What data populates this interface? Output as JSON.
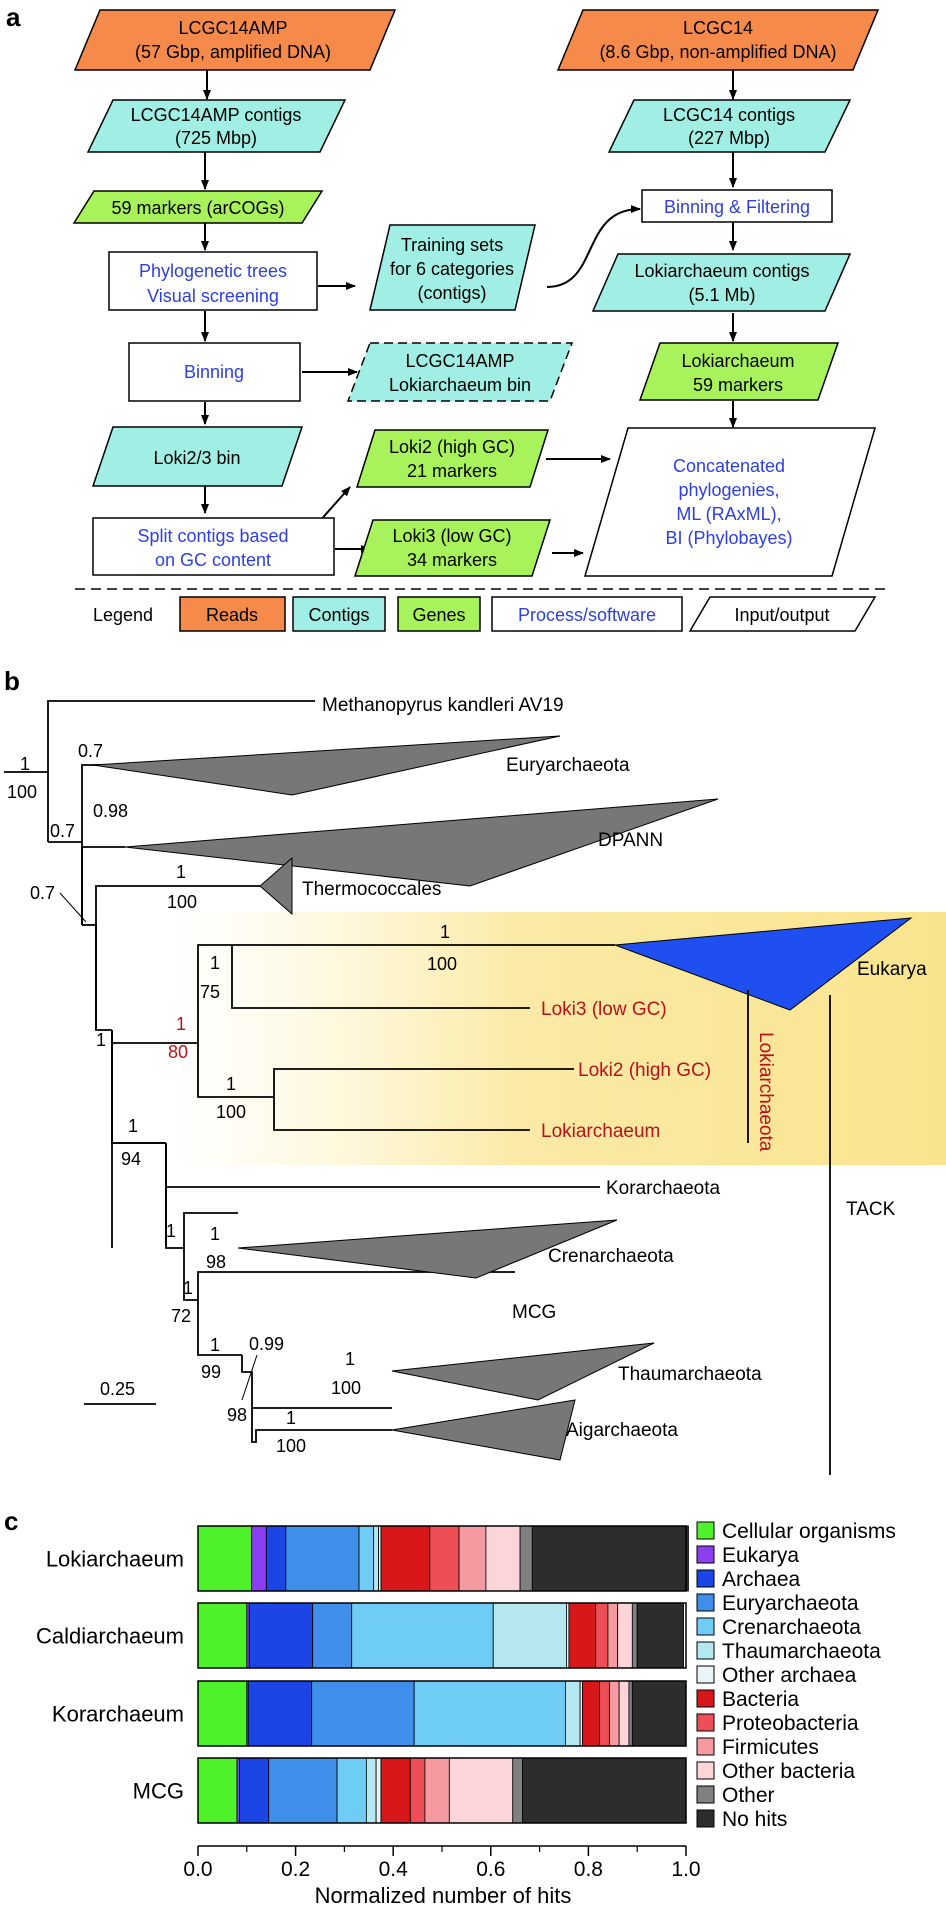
{
  "colors": {
    "reads": "#f58a4b",
    "contigs": "#a1efe4",
    "genes": "#a8f25c",
    "process_text": "#2d3fe0",
    "red_text": "#b8121b",
    "highlight": "#f9e48e",
    "gray_clade": "#777777",
    "eukarya_clade": "#1f4ff0"
  },
  "panel_a": {
    "label": "a",
    "flow": {
      "lcgc14amp_reads": [
        "LCGC14AMP",
        "(57 Gbp, amplified DNA)"
      ],
      "lcgc14_reads": [
        "LCGC14",
        "(8.6 Gbp, non-amplified DNA)"
      ],
      "lcgc14amp_contigs": [
        "LCGC14AMP contigs",
        "(725 Mbp)"
      ],
      "lcgc14_contigs": [
        "LCGC14 contigs",
        "(227 Mbp)"
      ],
      "markers_59": [
        "59 markers (arCOGs)"
      ],
      "binning_filtering": [
        "Binning & Filtering"
      ],
      "phylo_trees": [
        "Phylogenetic trees",
        "Visual screening"
      ],
      "training_sets": [
        "Training sets",
        "for 6 categories",
        "(contigs)"
      ],
      "loki_contigs": [
        "Lokiarchaeum contigs",
        "(5.1 Mb)"
      ],
      "binning": [
        "Binning"
      ],
      "amp_bin": [
        "LCGC14AMP",
        "Lokiarchaeum bin"
      ],
      "loki_markers": [
        "Lokiarchaeum",
        "59 markers"
      ],
      "loki23_bin": [
        "Loki2/3 bin"
      ],
      "loki2_markers": [
        "Loki2 (high GC)",
        "21 markers"
      ],
      "loki3_markers": [
        "Loki3 (low GC)",
        "34 markers"
      ],
      "split_contigs": [
        "Split contigs based",
        "on GC content"
      ],
      "concat": [
        "Concatenated",
        "phylogenies,",
        "ML (RAxML),",
        "BI (Phylobayes)"
      ]
    },
    "legend": {
      "title": "Legend",
      "reads": "Reads",
      "contigs": "Contigs",
      "genes": "Genes",
      "process": "Process/software",
      "io": "Input/output"
    }
  },
  "panel_b": {
    "label": "b",
    "taxa": {
      "methanopyrus": "Methanopyrus kandleri AV19",
      "euryarchaeota": "Euryarchaeota",
      "dpann": "DPANN",
      "thermococcales": "Thermococcales",
      "eukarya": "Eukarya",
      "loki3": "Loki3 (low GC)",
      "loki2": "Loki2 (high GC)",
      "lokiarchaeum": "Lokiarchaeum",
      "korarchaeota": "Korarchaeota",
      "crenarchaeota": "Crenarchaeota",
      "mcg": "MCG",
      "thaumarchaeota": "Thaumarchaeota",
      "aigarchaeota": "Aigarchaeota"
    },
    "group_labels": {
      "lokiarchaeota": "Lokiarchaeota",
      "tack": "TACK"
    },
    "support": {
      "root_top": "1",
      "root_bottom": "100",
      "eury": "0.7",
      "dpann_node": "0.7",
      "dpann_branch": "0.98",
      "node_07_left": "0.7",
      "thermo_top": "1",
      "thermo_bottom": "100",
      "main_1": "1",
      "euk_top": "1",
      "euk_bottom": "100",
      "euk_node_top": "1",
      "euk_node_bottom": "75",
      "loki_node_top": "1",
      "loki_node_bottom": "80",
      "loki2_top": "1",
      "loki2_bottom": "100",
      "big_top": "1",
      "big_bottom": "94",
      "tack_1": "1",
      "cren_top": "1",
      "cren_bottom": "98",
      "mcg_node_1": "1",
      "mcg_node_bottom": "72",
      "thaum_node_top": "1",
      "thaum_node_bottom": "99",
      "thaum_099": "0.99",
      "thaum_98": "98",
      "thaum_top": "1",
      "thaum_bottom": "100",
      "aig_top": "1",
      "aig_bottom": "100"
    },
    "scale_label": "0.25"
  },
  "panel_c": {
    "label": "c",
    "xlabel": "Normalized number of hits",
    "ticks": [
      "0.0",
      "0.2",
      "0.4",
      "0.6",
      "0.8",
      "1.0"
    ]
  },
  "chart_data": {
    "type": "bar",
    "orientation": "horizontal",
    "stacked": true,
    "xlabel": "Normalized number of hits",
    "xlim": [
      0,
      1
    ],
    "categories": [
      "Lokiarchaeum",
      "Caldiarchaeum",
      "Korarchaeum",
      "MCG"
    ],
    "series": [
      {
        "name": "Cellular organisms",
        "color": "#4ff12a",
        "values": [
          0.11,
          0.1,
          0.1,
          0.08
        ]
      },
      {
        "name": "Eukarya",
        "color": "#8b3ff0",
        "values": [
          0.03,
          0.005,
          0.003,
          0.005
        ]
      },
      {
        "name": "Archaea",
        "color": "#1c45e6",
        "values": [
          0.04,
          0.13,
          0.13,
          0.06
        ]
      },
      {
        "name": "Euryarchaeota",
        "color": "#3f8fea",
        "values": [
          0.15,
          0.08,
          0.21,
          0.14
        ]
      },
      {
        "name": "Crenarchaeota",
        "color": "#6fcdf5",
        "values": [
          0.03,
          0.29,
          0.31,
          0.06
        ]
      },
      {
        "name": "Thaumarchaeota",
        "color": "#b5e7f0",
        "values": [
          0.01,
          0.15,
          0.03,
          0.02
        ]
      },
      {
        "name": "Other archaea",
        "color": "#e8f4f8",
        "values": [
          0.005,
          0.005,
          0.005,
          0.01
        ]
      },
      {
        "name": "Bacteria",
        "color": "#d8171b",
        "values": [
          0.1,
          0.055,
          0.035,
          0.06
        ]
      },
      {
        "name": "Proteobacteria",
        "color": "#ee4f57",
        "values": [
          0.06,
          0.025,
          0.02,
          0.03
        ]
      },
      {
        "name": "Firmicutes",
        "color": "#f49aa0",
        "values": [
          0.055,
          0.02,
          0.02,
          0.05
        ]
      },
      {
        "name": "Other bacteria",
        "color": "#fbd5d8",
        "values": [
          0.07,
          0.03,
          0.02,
          0.13
        ]
      },
      {
        "name": "Other",
        "color": "#808080",
        "values": [
          0.025,
          0.01,
          0.007,
          0.02
        ]
      },
      {
        "name": "No hits",
        "color": "#2d2d2d",
        "values": [
          0.32,
          0.095,
          0.11,
          0.335
        ]
      }
    ]
  }
}
